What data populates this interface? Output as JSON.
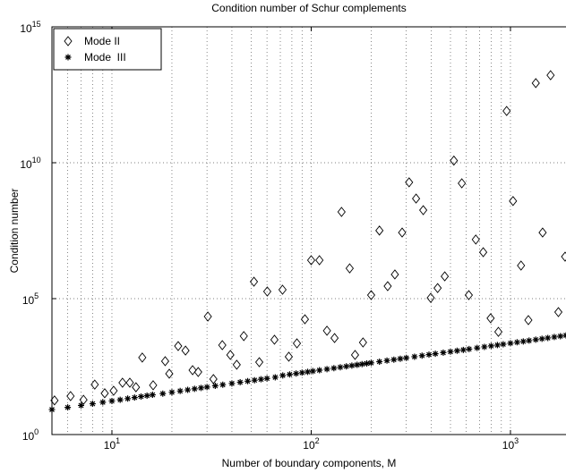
{
  "chart_data": {
    "type": "scatter",
    "title": "Condition number of Schur complements",
    "x_label": "Number of boundary components, M",
    "y_label": "Condition number",
    "x_scale": "log",
    "y_scale": "log",
    "grid": true,
    "legend_position": "upper left",
    "xlim": [
      5,
      1900
    ],
    "ylim": [
      1,
      1000000000000000.0
    ],
    "xticks": [
      {
        "value": 10,
        "label": "10^1"
      },
      {
        "value": 100,
        "label": "10^2"
      },
      {
        "value": 1000,
        "label": "10^3"
      }
    ],
    "yticks": [
      {
        "value": 1,
        "label": "10^0"
      },
      {
        "value": 100000,
        "label": "10^5"
      },
      {
        "value": 10000000000,
        "label": "10^10"
      },
      {
        "value": 1000000000000000,
        "label": "10^15"
      }
    ],
    "series": [
      {
        "name": "Mode II",
        "marker": "diamond",
        "color": "#000000",
        "x": [
          5.15,
          6.2,
          7.2,
          8.2,
          9.2,
          10.2,
          11.3,
          12.3,
          13.2,
          14.2,
          16.1,
          18.5,
          19.4,
          21.5,
          23.4,
          25.4,
          27.1,
          30.3,
          32.3,
          35.8,
          39.3,
          42.3,
          45.9,
          51.6,
          54.9,
          60.2,
          65.4,
          71.8,
          77.2,
          84.8,
          93,
          100,
          110,
          120,
          131,
          142,
          156,
          166,
          182,
          200,
          220,
          242,
          263,
          286,
          310,
          336,
          365,
          398,
          431,
          468,
          520,
          570,
          618,
          670,
          730,
          795,
          870,
          957,
          1030,
          1130,
          1230,
          1340,
          1450,
          1590,
          1740,
          1880
        ],
        "values": [
          18,
          26,
          19,
          69,
          33,
          41,
          81,
          81,
          55,
          680,
          65,
          500,
          173,
          1800,
          1230,
          234,
          200,
          22000,
          110,
          1950,
          850,
          370,
          4200,
          420000,
          460,
          183000,
          3080,
          213000,
          730,
          2270,
          17400,
          2600000,
          2600000,
          6600,
          3550,
          155000000,
          1300000,
          850,
          2450,
          135000,
          32000000,
          288000,
          776000,
          27000000,
          1900000000,
          480000000,
          180000000,
          107000,
          245000,
          660000,
          12000000000,
          1750000000,
          135000,
          15000000,
          5100000,
          19000,
          6000,
          800000000000,
          390000000,
          1650000,
          16200,
          8500000000000,
          27000000,
          16600000000000,
          32000,
          3500000
        ]
      },
      {
        "name": "Mode  III",
        "marker": "star",
        "color": "#000000",
        "x": [
          5,
          6,
          7,
          8,
          9,
          10,
          11,
          12,
          13,
          14,
          15,
          16,
          18,
          20,
          22,
          24,
          26,
          28,
          30,
          33,
          36,
          40,
          44,
          48,
          52,
          56,
          60,
          66,
          72,
          78,
          84,
          90,
          96,
          102,
          110,
          120,
          130,
          140,
          150,
          160,
          170,
          180,
          190,
          200,
          220,
          240,
          260,
          280,
          300,
          330,
          360,
          390,
          420,
          460,
          500,
          540,
          580,
          620,
          680,
          740,
          800,
          860,
          920,
          1000,
          1080,
          1160,
          1240,
          1340,
          1440,
          1540,
          1660,
          1780,
          1900
        ],
        "values": [
          8.3,
          10,
          11.8,
          13.6,
          15.4,
          17.2,
          19,
          21,
          23,
          25,
          27,
          29,
          32,
          36,
          40,
          44,
          48,
          52,
          56,
          62,
          68,
          76,
          84,
          92,
          100,
          108,
          116,
          128,
          150,
          163,
          176,
          189,
          202,
          216,
          233,
          255,
          277,
          300,
          322,
          345,
          367,
          390,
          412,
          435,
          480,
          525,
          570,
          615,
          660,
          730,
          800,
          870,
          940,
          1030,
          1120,
          1210,
          1300,
          1400,
          1540,
          1680,
          1820,
          1960,
          2100,
          2290,
          2480,
          2670,
          2860,
          3100,
          3340,
          3580,
          3870,
          4160,
          4450
        ]
      }
    ]
  }
}
